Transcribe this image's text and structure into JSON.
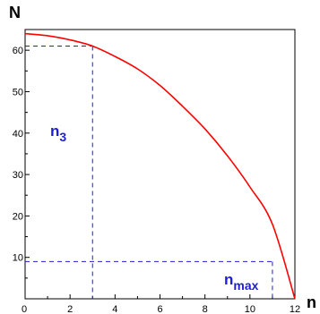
{
  "chart_data": {
    "type": "line",
    "ylabel": "N",
    "xlabel": "n",
    "xlim": [
      0,
      12
    ],
    "ylim": [
      0,
      65
    ],
    "xticks": [
      0,
      2,
      4,
      6,
      8,
      10,
      12
    ],
    "yticks": [
      10,
      20,
      30,
      40,
      50,
      60
    ],
    "grid": false,
    "series": [
      {
        "color": "#ff0000",
        "x": [
          0,
          1,
          2,
          3,
          4,
          5,
          6,
          7,
          8,
          9,
          10,
          11,
          12
        ],
        "y": [
          64,
          63.5,
          62.5,
          61,
          58.5,
          55.5,
          51.5,
          46.5,
          41,
          34.5,
          27,
          18,
          0
        ]
      }
    ],
    "annotations": [
      {
        "main": "n",
        "sub": "3",
        "x": 3,
        "y": 61,
        "color": "#1e1ed2"
      },
      {
        "main": "n",
        "sub": "max",
        "x": 11,
        "y": 9,
        "color": "#1e1ed2"
      }
    ]
  }
}
